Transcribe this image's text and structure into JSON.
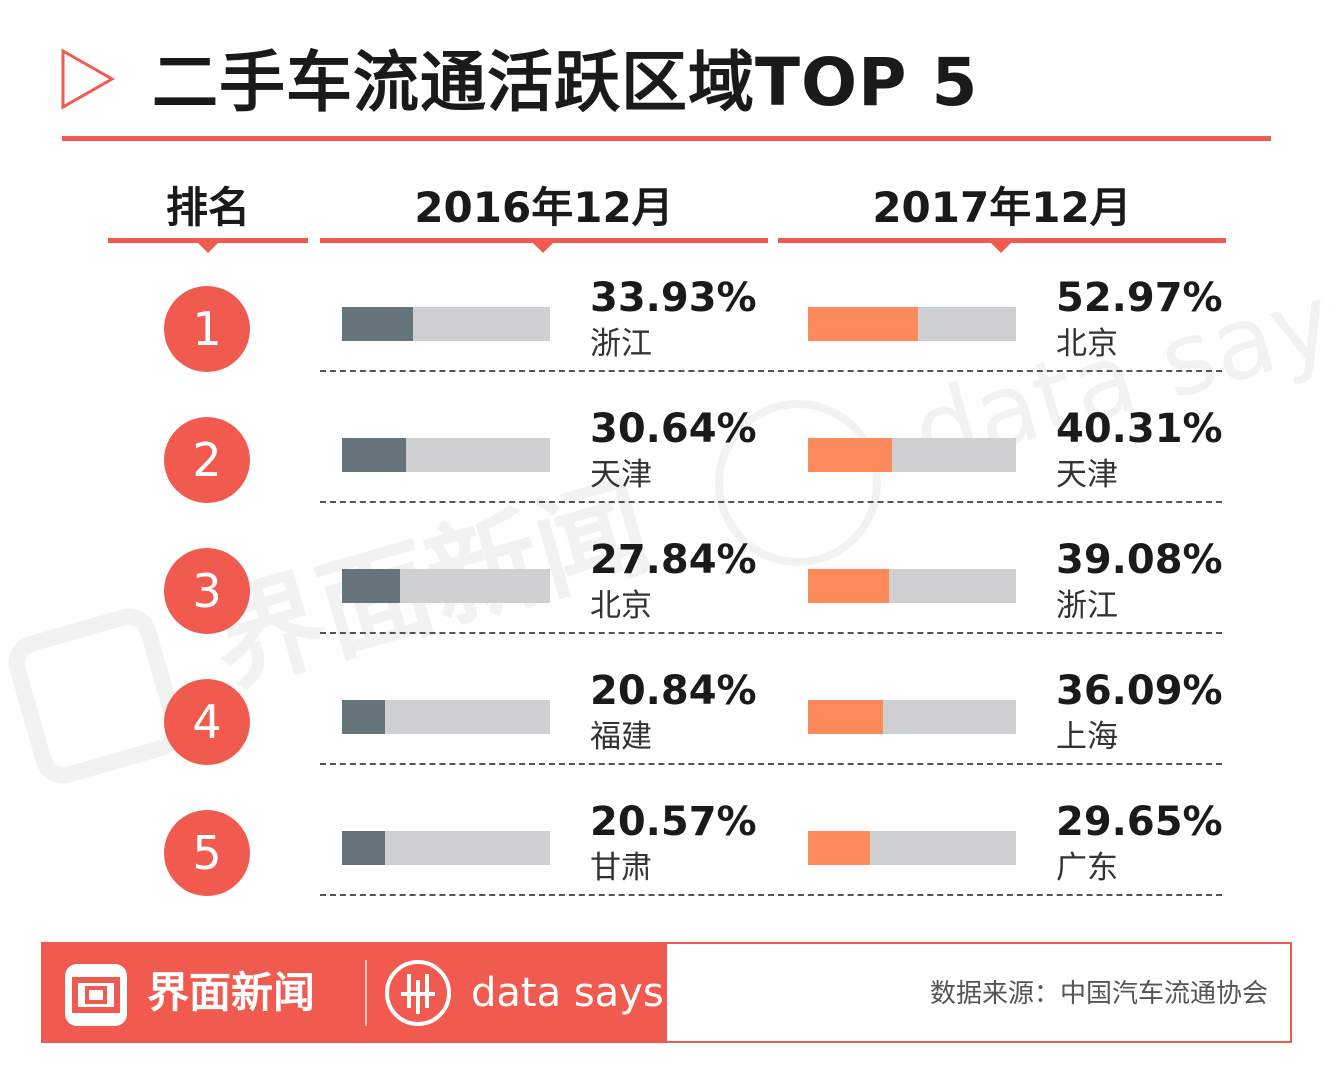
{
  "title": "二手车流通活跃区域TOP 5",
  "colors": {
    "accent": "#f15b4f",
    "bar_2016": "#66757c",
    "bar_2017": "#fc8a5a",
    "track": "#cfd0d1"
  },
  "headers": {
    "rank": "排名",
    "period_2016": "2016年12月",
    "period_2017": "2017年12月"
  },
  "chart_data": {
    "type": "bar",
    "title": "二手车流通活跃区域TOP 5",
    "xlabel": "",
    "ylabel": "",
    "ylim": [
      0,
      100
    ],
    "ranks": [
      "1",
      "2",
      "3",
      "4",
      "5"
    ],
    "series": [
      {
        "name": "2016年12月",
        "regions": [
          "浙江",
          "天津",
          "北京",
          "福建",
          "甘肃"
        ],
        "labels": [
          "33.93%",
          "30.64%",
          "27.84%",
          "20.84%",
          "20.57%"
        ],
        "values": [
          33.93,
          30.64,
          27.84,
          20.84,
          20.57
        ]
      },
      {
        "name": "2017年12月",
        "regions": [
          "北京",
          "天津",
          "浙江",
          "上海",
          "广东"
        ],
        "labels": [
          "52.97%",
          "40.31%",
          "39.08%",
          "36.09%",
          "29.65%"
        ],
        "values": [
          52.97,
          40.31,
          39.08,
          36.09,
          29.65
        ]
      }
    ]
  },
  "watermark": {
    "brand_cn": "界面新闻",
    "brand_en": "data says"
  },
  "footer": {
    "brand_cn": "界面新闻",
    "brand_en": "data says",
    "logo_icon": "jiemian-logo-icon",
    "datasays_icon": "data-says-logo-icon",
    "source": "数据来源：中国汽车流通协会"
  }
}
